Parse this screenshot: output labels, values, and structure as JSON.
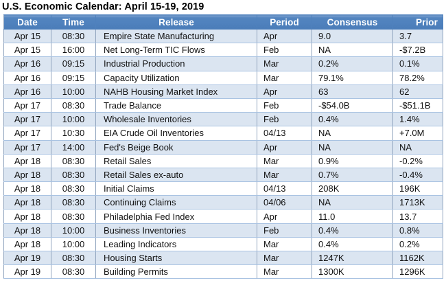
{
  "page_title": "U.S. Economic Calendar: April 15-19, 2019",
  "colors": {
    "header_bg": "#4f81bd",
    "header_text": "#ffffff",
    "row_shaded_bg": "#dbe5f1",
    "row_plain_bg": "#ffffff",
    "grid_border": "#8fa3bd",
    "row_border": "#a9c3e2",
    "title_text": "#000000"
  },
  "chart_data": {
    "type": "table",
    "title": "U.S. Economic Calendar: April 15-19, 2019",
    "columns": [
      "Date",
      "Time",
      "Release",
      "Period",
      "Consensus",
      "Prior"
    ],
    "rows": [
      [
        "Apr 15",
        "08:30",
        "Empire State Manufacturing",
        "Apr",
        "9.0",
        "3.7"
      ],
      [
        "Apr 15",
        "16:00",
        "Net Long-Term TIC Flows",
        "Feb",
        "NA",
        "-$7.2B"
      ],
      [
        "Apr 16",
        "09:15",
        "Industrial Production",
        "Mar",
        "0.2%",
        "0.1%"
      ],
      [
        "Apr 16",
        "09:15",
        "Capacity Utilization",
        "Mar",
        "79.1%",
        "78.2%"
      ],
      [
        "Apr 16",
        "10:00",
        "NAHB Housing Market Index",
        "Apr",
        "63",
        "62"
      ],
      [
        "Apr 17",
        "08:30",
        "Trade Balance",
        "Feb",
        "-$54.0B",
        "-$51.1B"
      ],
      [
        "Apr 17",
        "10:00",
        "Wholesale Inventories",
        "Feb",
        "0.4%",
        "1.4%"
      ],
      [
        "Apr 17",
        "10:30",
        "EIA Crude Oil Inventories",
        "04/13",
        "NA",
        "+7.0M"
      ],
      [
        "Apr 17",
        "14:00",
        "Fed's Beige Book",
        "Apr",
        "NA",
        "NA"
      ],
      [
        "Apr 18",
        "08:30",
        "Retail Sales",
        "Mar",
        "0.9%",
        "-0.2%"
      ],
      [
        "Apr 18",
        "08:30",
        "Retail Sales ex-auto",
        "Mar",
        "0.7%",
        "-0.4%"
      ],
      [
        "Apr 18",
        "08:30",
        "Initial Claims",
        "04/13",
        "208K",
        "196K"
      ],
      [
        "Apr 18",
        "08:30",
        "Continuing Claims",
        "04/06",
        "NA",
        "1713K"
      ],
      [
        "Apr 18",
        "08:30",
        "Philadelphia Fed Index",
        "Apr",
        "11.0",
        "13.7"
      ],
      [
        "Apr 18",
        "10:00",
        "Business Inventories",
        "Feb",
        "0.4%",
        "0.8%"
      ],
      [
        "Apr 18",
        "10:00",
        "Leading Indicators",
        "Mar",
        "0.4%",
        "0.2%"
      ],
      [
        "Apr 19",
        "08:30",
        "Housing Starts",
        "Mar",
        "1247K",
        "1162K"
      ],
      [
        "Apr 19",
        "08:30",
        "Building Permits",
        "Mar",
        "1300K",
        "1296K"
      ]
    ]
  }
}
